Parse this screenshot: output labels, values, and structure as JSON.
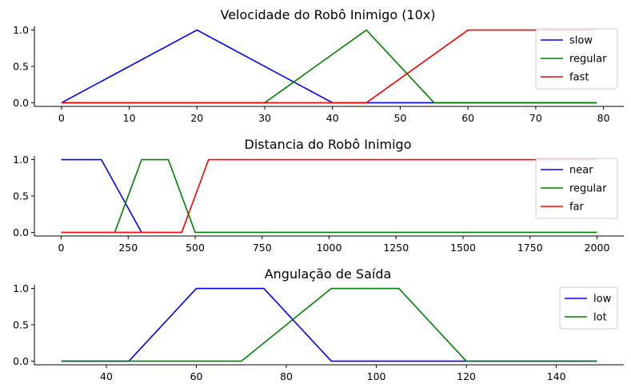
{
  "colors": {
    "blue": "#0000ff",
    "green": "#008000",
    "red": "#ff0000"
  },
  "chart_data": [
    {
      "type": "line",
      "title": "Velocidade do Robô Inimigo (10x)",
      "xlim": [
        -4,
        83
      ],
      "ylim": [
        -0.05,
        1.05
      ],
      "xticks": [
        0,
        10,
        20,
        30,
        40,
        50,
        60,
        70,
        80
      ],
      "xtick_labels": [
        "0",
        "10",
        "20",
        "30",
        "40",
        "50",
        "60",
        "70",
        "80"
      ],
      "yticks": [
        0,
        0.5,
        1
      ],
      "ytick_labels": [
        "0.0",
        "0.5",
        "1.0"
      ],
      "legend": "upper right",
      "grid": false,
      "series": [
        {
          "name": "slow",
          "color": "#0000ff",
          "x": [
            0,
            20,
            40,
            79
          ],
          "y": [
            0,
            1,
            0,
            0
          ]
        },
        {
          "name": "regular",
          "color": "#008000",
          "x": [
            0,
            30,
            45,
            55,
            79
          ],
          "y": [
            0,
            0,
            1,
            0,
            0
          ]
        },
        {
          "name": "fast",
          "color": "#ff0000",
          "x": [
            0,
            45,
            60,
            79
          ],
          "y": [
            0,
            0,
            1,
            1
          ]
        }
      ]
    },
    {
      "type": "line",
      "title": "Distancia do Robô Inimigo",
      "xlim": [
        -100,
        2100
      ],
      "ylim": [
        -0.05,
        1.05
      ],
      "xticks": [
        0,
        250,
        500,
        750,
        1000,
        1250,
        1500,
        1750,
        2000
      ],
      "xtick_labels": [
        "0",
        "250",
        "500",
        "750",
        "1000",
        "1250",
        "1500",
        "1750",
        "2000"
      ],
      "yticks": [
        0,
        0.5,
        1
      ],
      "ytick_labels": [
        "0.0",
        "0.5",
        "1.0"
      ],
      "legend": "upper right",
      "grid": false,
      "series": [
        {
          "name": "near",
          "color": "#0000ff",
          "x": [
            0,
            150,
            300
          ],
          "y": [
            1,
            1,
            0
          ]
        },
        {
          "name": "regular",
          "color": "#008000",
          "x": [
            200,
            300,
            400,
            500,
            2000
          ],
          "y": [
            0,
            1,
            1,
            0,
            0
          ]
        },
        {
          "name": "far",
          "color": "#ff0000",
          "x": [
            0,
            450,
            550,
            2000
          ],
          "y": [
            0,
            0,
            1,
            1
          ]
        }
      ]
    },
    {
      "type": "line",
      "title": "Angulação de Saída",
      "xlim": [
        24,
        155
      ],
      "ylim": [
        -0.05,
        1.05
      ],
      "xticks": [
        40,
        60,
        80,
        100,
        120,
        140
      ],
      "xtick_labels": [
        "40",
        "60",
        "80",
        "100",
        "120",
        "140"
      ],
      "yticks": [
        0,
        0.5,
        1
      ],
      "ytick_labels": [
        "0.0",
        "0.5",
        "1.0"
      ],
      "legend": "upper right",
      "grid": false,
      "series": [
        {
          "name": "low",
          "color": "#0000ff",
          "x": [
            30,
            45,
            60,
            75,
            90,
            149
          ],
          "y": [
            0,
            0,
            1,
            1,
            0,
            0
          ]
        },
        {
          "name": "lot",
          "color": "#008000",
          "x": [
            30,
            70,
            90,
            105,
            120,
            149
          ],
          "y": [
            0,
            0,
            1,
            1,
            0,
            0
          ]
        }
      ]
    }
  ]
}
